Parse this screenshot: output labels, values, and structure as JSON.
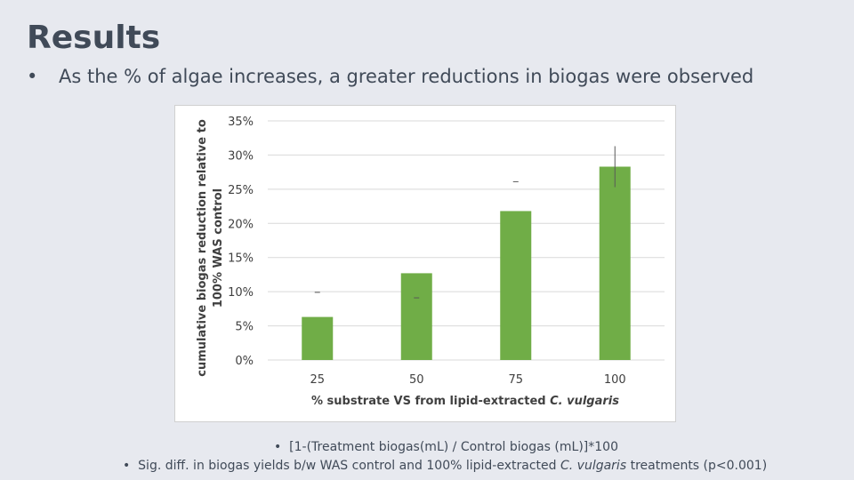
{
  "slide": {
    "title": "Results",
    "bullet_marker": "•",
    "bullet_text": "As the % of algae increases, a greater reductions in biogas were observed"
  },
  "footnotes": {
    "marker": "•",
    "note1": "[1-(Treatment biogas(mL) / Control biogas (mL)]*100",
    "note2_pre": "Sig. diff. in biogas yields b/w WAS control and 100% lipid-extracted ",
    "note2_italic": "C. vulgaris",
    "note2_post": " treatments (p<0.001)"
  },
  "chart_data": {
    "type": "bar",
    "categories": [
      "25",
      "50",
      "75",
      "100"
    ],
    "values": [
      6.3,
      12.7,
      21.8,
      28.3
    ],
    "error_high": [
      9.9,
      9.1,
      26.1,
      31.3
    ],
    "error_low": [
      9.9,
      9.1,
      26.1,
      25.3
    ],
    "color": "#70ad47",
    "ylim": [
      0,
      35
    ],
    "yticks": [
      0,
      5,
      10,
      15,
      20,
      25,
      30,
      35
    ],
    "ytick_labels": [
      "0%",
      "5%",
      "10%",
      "15%",
      "20%",
      "25%",
      "30%",
      "35%"
    ],
    "ylabel_line1": "cumulative biogas reduction relative to",
    "ylabel_line2": "100% WAS control",
    "xlabel_pre": "% substrate VS from lipid-extracted ",
    "xlabel_italic": "C. vulgaris",
    "grid": true
  }
}
